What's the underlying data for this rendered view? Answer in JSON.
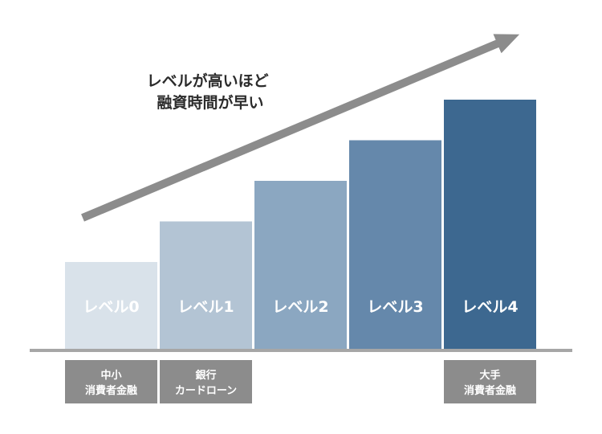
{
  "chart_data": {
    "type": "bar",
    "categories": [
      "レベル0",
      "レベル1",
      "レベル2",
      "レベル3",
      "レベル4"
    ],
    "values": [
      0,
      1,
      2,
      3,
      4
    ],
    "ylim": [
      0,
      4
    ],
    "grid": false,
    "colors": [
      "#d9e2ea",
      "#b3c4d4",
      "#8ba7c1",
      "#6588ab",
      "#3d6890"
    ],
    "annotation": {
      "lines": [
        "レベルが高いほど",
        "融資時間が早い"
      ]
    },
    "tags": [
      {
        "category_index": 0,
        "lines": [
          "中小",
          "消費者金融"
        ]
      },
      {
        "category_index": 1,
        "lines": [
          "銀行",
          "カードローン"
        ]
      },
      {
        "category_index": 4,
        "lines": [
          "大手",
          "消費者金融"
        ]
      }
    ],
    "tag_color": "#8c8c8c",
    "arrow_color": "#8c8c8c",
    "baseline_color": "#a6a6a6"
  }
}
